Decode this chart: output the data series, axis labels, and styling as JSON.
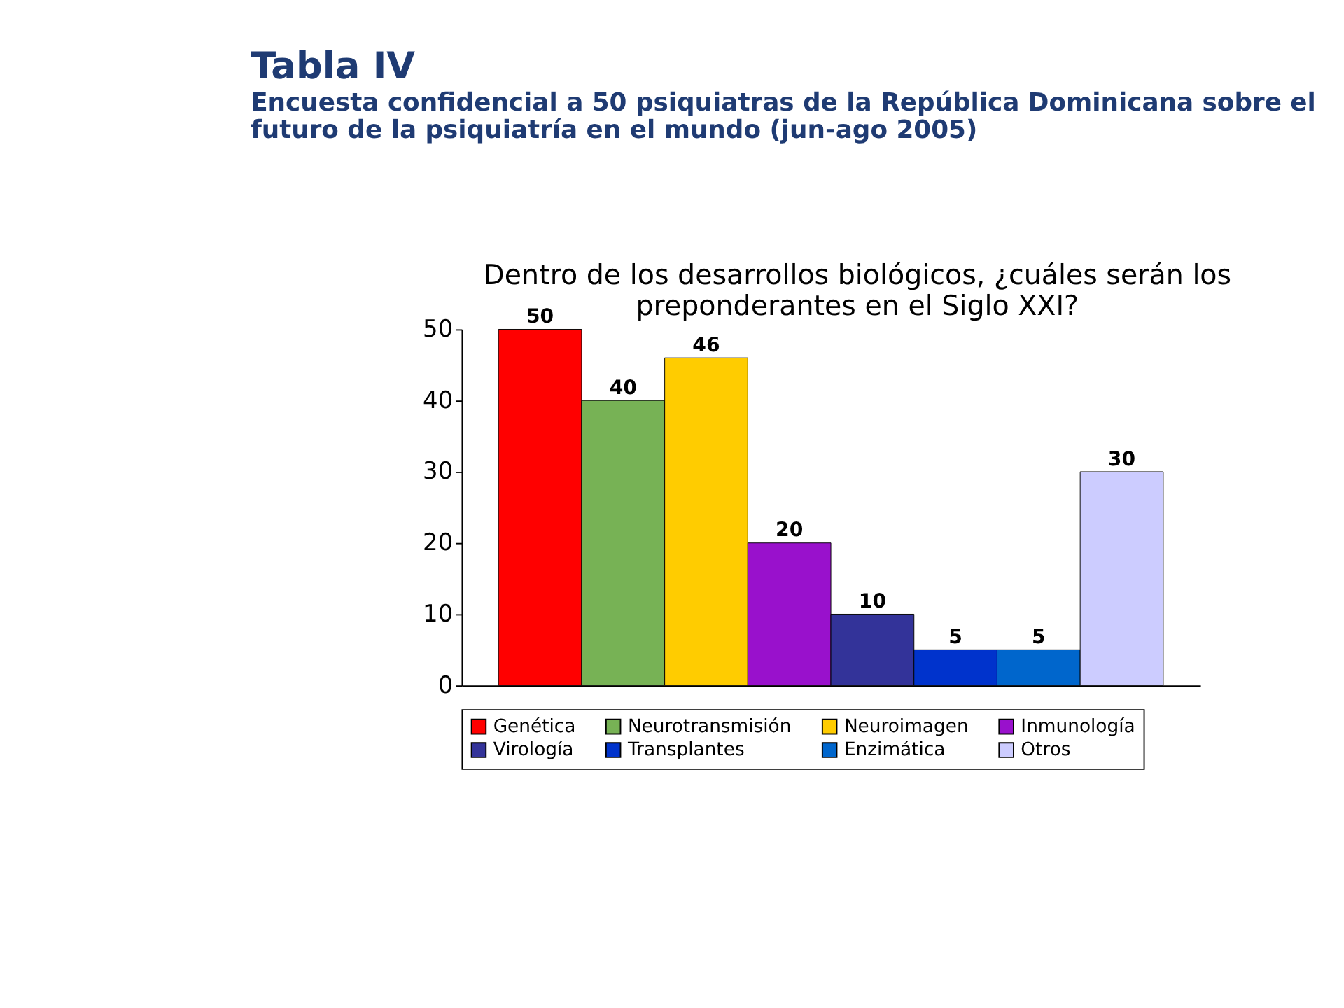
{
  "chart_data": {
    "type": "bar",
    "title": "Tabla IV",
    "subtitle": "Encuesta confidencial a 50 psiquiatras de la República Dominicana sobre el\nfuturo de la psiquiatría en el mundo (jun-ago 2005)",
    "annotations": [
      "Dentro de los desarrollos biológicos, ¿cuáles serán los\npreponderantes en el Siglo XXI?"
    ],
    "categories": [
      null
    ],
    "series": [
      {
        "name": "Genética",
        "color": "#ff0000",
        "values": [
          50
        ]
      },
      {
        "name": "Neurotransmisión",
        "color": "#77b255",
        "values": [
          40
        ]
      },
      {
        "name": "Neuroimagen",
        "color": "#ffcc00",
        "values": [
          46
        ]
      },
      {
        "name": "Inmunología",
        "color": "#9911cc",
        "values": [
          20
        ]
      },
      {
        "name": "Virología",
        "color": "#333399",
        "values": [
          10
        ]
      },
      {
        "name": "Transplantes",
        "color": "#0033cc",
        "values": [
          5
        ]
      },
      {
        "name": "Enzimática",
        "color": "#0066cc",
        "values": [
          5
        ]
      },
      {
        "name": "Otros",
        "color": "#ccccff",
        "values": [
          30
        ]
      }
    ],
    "ylim": [
      0,
      50
    ],
    "yticks": [
      0,
      10,
      20,
      30,
      40,
      50
    ],
    "grid": false,
    "legend": "bottom",
    "tick_labels": "y",
    "data_labels": true
  }
}
